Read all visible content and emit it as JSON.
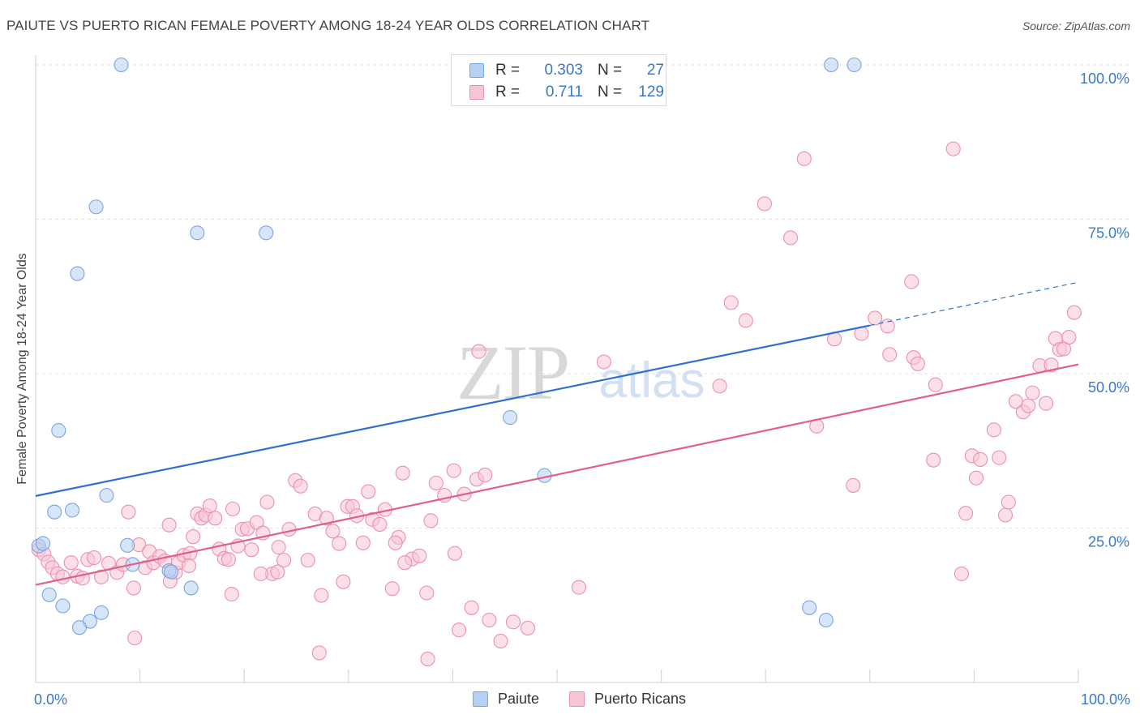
{
  "title": "PAIUTE VS PUERTO RICAN FEMALE POVERTY AMONG 18-24 YEAR OLDS CORRELATION CHART",
  "source": "Source: ZipAtlas.com",
  "watermark": {
    "zip": "ZIP",
    "atlas": "atlas"
  },
  "stats": [
    {
      "swatch": "blue",
      "r_label": "R =",
      "r_value": "0.303",
      "n_label": "N =",
      "n_value": "27"
    },
    {
      "swatch": "pink",
      "r_label": "R =",
      "r_value": "0.711",
      "n_label": "N =",
      "n_value": "129"
    }
  ],
  "legend": [
    {
      "label": "Paiute",
      "color": "#b6d0f3"
    },
    {
      "label": "Puerto Ricans",
      "color": "#f7c6d5"
    }
  ],
  "chart_data": {
    "type": "scatter",
    "title": "PAIUTE VS PUERTO RICAN FEMALE POVERTY AMONG 18-24 YEAR OLDS CORRELATION CHART",
    "xlabel": "",
    "ylabel": "Female Poverty Among 18-24 Year Olds",
    "xlim": [
      0,
      100
    ],
    "ylim": [
      0,
      100
    ],
    "x_tick_labels": [
      "0.0%",
      "100.0%"
    ],
    "y_ticks": [
      25,
      50,
      75,
      100
    ],
    "y_tick_labels": [
      "25.0%",
      "50.0%",
      "75.0%",
      "100.0%"
    ],
    "grid": true,
    "series": [
      {
        "name": "Paiute",
        "color": "#7aa6e0",
        "fill": "#b6d0f3",
        "trend_color": "#2f6fd0",
        "trend": {
          "x0": 0,
          "y0": 30.2,
          "x1": 80,
          "y1": 57.8,
          "dash_to_x": 100,
          "dash_to_y": 64.8
        },
        "points": [
          [
            8.2,
            100
          ],
          [
            76.3,
            100
          ],
          [
            78.5,
            100
          ],
          [
            5.8,
            77
          ],
          [
            15.5,
            72.8
          ],
          [
            22.1,
            72.8
          ],
          [
            4,
            66.2
          ],
          [
            2.2,
            40.8
          ],
          [
            45.5,
            42.9
          ],
          [
            6.8,
            30.3
          ],
          [
            48.8,
            33.5
          ],
          [
            1.8,
            27.6
          ],
          [
            3.5,
            27.9
          ],
          [
            0.3,
            22.1
          ],
          [
            0.7,
            22.5
          ],
          [
            8.8,
            22.2
          ],
          [
            9.3,
            19.1
          ],
          [
            12.8,
            18.1
          ],
          [
            13,
            17.9
          ],
          [
            14.9,
            15.3
          ],
          [
            1.3,
            14.2
          ],
          [
            2.6,
            12.4
          ],
          [
            6.3,
            11.3
          ],
          [
            5.2,
            9.9
          ],
          [
            4.2,
            8.9
          ],
          [
            74.2,
            12.1
          ],
          [
            75.8,
            10.1
          ]
        ]
      },
      {
        "name": "Puerto Ricans",
        "color": "#ec90ac",
        "fill": "#f7c6d5",
        "trend_color": "#e0608a",
        "trend": {
          "x0": 0,
          "y0": 15.8,
          "x1": 100,
          "y1": 51.5
        },
        "points": [
          [
            0.3,
            21.5
          ],
          [
            0.8,
            20.8
          ],
          [
            1.2,
            19.5
          ],
          [
            1.6,
            18.6
          ],
          [
            2.1,
            17.6
          ],
          [
            2.6,
            17.1
          ],
          [
            3.4,
            19.4
          ],
          [
            4,
            17.2
          ],
          [
            4.5,
            16.9
          ],
          [
            5,
            19.9
          ],
          [
            5.6,
            20.2
          ],
          [
            6.3,
            17.1
          ],
          [
            7,
            19.3
          ],
          [
            7.8,
            17.8
          ],
          [
            8.4,
            19.1
          ],
          [
            8.9,
            27.6
          ],
          [
            9.4,
            15.3
          ],
          [
            9.9,
            22.3
          ],
          [
            10.5,
            18.6
          ],
          [
            10.9,
            21.2
          ],
          [
            11.3,
            19.4
          ],
          [
            11.9,
            20.4
          ],
          [
            12.4,
            19.7
          ],
          [
            12.8,
            25.5
          ],
          [
            13.4,
            17.8
          ],
          [
            13.7,
            19.4
          ],
          [
            14.2,
            20.6
          ],
          [
            14.8,
            20.9
          ],
          [
            15.1,
            23.6
          ],
          [
            15.5,
            27.3
          ],
          [
            15.9,
            26.6
          ],
          [
            16.3,
            27.1
          ],
          [
            16.7,
            28.6
          ],
          [
            17.2,
            26.6
          ],
          [
            17.6,
            21.6
          ],
          [
            18.1,
            20.1
          ],
          [
            18.5,
            19.9
          ],
          [
            18.9,
            28.1
          ],
          [
            19.4,
            22.1
          ],
          [
            19.8,
            24.8
          ],
          [
            20.3,
            24.9
          ],
          [
            20.7,
            21.5
          ],
          [
            21.2,
            25.9
          ],
          [
            21.8,
            24.2
          ],
          [
            22.2,
            29.2
          ],
          [
            22.7,
            17.6
          ],
          [
            23.3,
            21.9
          ],
          [
            23.8,
            19.8
          ],
          [
            24.3,
            24.8
          ],
          [
            24.9,
            32.7
          ],
          [
            25.4,
            31.8
          ],
          [
            26.1,
            19.8
          ],
          [
            26.8,
            27.3
          ],
          [
            27.4,
            14.1
          ],
          [
            27.9,
            26.6
          ],
          [
            28.5,
            24.5
          ],
          [
            29.1,
            22.5
          ],
          [
            29.5,
            16.3
          ],
          [
            29.9,
            28.5
          ],
          [
            30.4,
            28.5
          ],
          [
            30.8,
            27
          ],
          [
            31.4,
            22.6
          ],
          [
            31.9,
            30.9
          ],
          [
            32.3,
            26.4
          ],
          [
            33,
            25.6
          ],
          [
            33.5,
            28
          ],
          [
            34.2,
            15.2
          ],
          [
            34.8,
            23.5
          ],
          [
            35.2,
            33.9
          ],
          [
            36.1,
            20
          ],
          [
            36.8,
            20.5
          ],
          [
            37.5,
            14.5
          ],
          [
            37.9,
            26.2
          ],
          [
            38.4,
            32.3
          ],
          [
            39.2,
            30.3
          ],
          [
            40.1,
            34.3
          ],
          [
            41.1,
            30.5
          ],
          [
            42.3,
            32.9
          ],
          [
            43.1,
            33.6
          ],
          [
            27.2,
            4.8
          ],
          [
            37.6,
            3.8
          ],
          [
            40.6,
            8.5
          ],
          [
            43.5,
            10.1
          ],
          [
            45.8,
            9.8
          ],
          [
            12.9,
            16.4
          ],
          [
            21.6,
            17.6
          ],
          [
            14.7,
            18.9
          ],
          [
            18.8,
            14.3
          ],
          [
            23.2,
            17.9
          ],
          [
            35.4,
            19.4
          ],
          [
            40.2,
            20.9
          ],
          [
            9.5,
            7.2
          ],
          [
            41.8,
            12.1
          ],
          [
            44.6,
            6.7
          ],
          [
            47.2,
            8.8
          ],
          [
            52.1,
            15.4
          ],
          [
            34.5,
            22.6
          ],
          [
            42.5,
            53.6
          ],
          [
            54.5,
            51.9
          ],
          [
            65.6,
            48
          ],
          [
            66.7,
            61.5
          ],
          [
            68.1,
            58.6
          ],
          [
            69.9,
            77.5
          ],
          [
            72.4,
            72
          ],
          [
            73.7,
            84.8
          ],
          [
            74.9,
            41.5
          ],
          [
            76.6,
            55.6
          ],
          [
            78.4,
            31.9
          ],
          [
            79.2,
            56.5
          ],
          [
            80.5,
            59
          ],
          [
            81.7,
            57.7
          ],
          [
            81.9,
            53.1
          ],
          [
            84,
            64.9
          ],
          [
            84.2,
            52.6
          ],
          [
            84.6,
            51.6
          ],
          [
            86.3,
            48.2
          ],
          [
            86.1,
            36
          ],
          [
            88,
            86.4
          ],
          [
            88.8,
            17.6
          ],
          [
            89.2,
            27.4
          ],
          [
            89.8,
            36.7
          ],
          [
            90.2,
            33.1
          ],
          [
            90.6,
            36.1
          ],
          [
            91.9,
            40.9
          ],
          [
            92.4,
            36.4
          ],
          [
            93,
            27.1
          ],
          [
            93.3,
            29.2
          ],
          [
            94,
            45.5
          ],
          [
            94.7,
            43.8
          ],
          [
            95.2,
            44.8
          ],
          [
            95.6,
            46.9
          ],
          [
            96.3,
            51.3
          ],
          [
            96.9,
            45.2
          ],
          [
            97.4,
            51.4
          ],
          [
            97.8,
            55.7
          ],
          [
            98.2,
            53.9
          ],
          [
            98.6,
            54
          ],
          [
            99.1,
            55.9
          ],
          [
            99.6,
            59.9
          ]
        ]
      }
    ]
  }
}
